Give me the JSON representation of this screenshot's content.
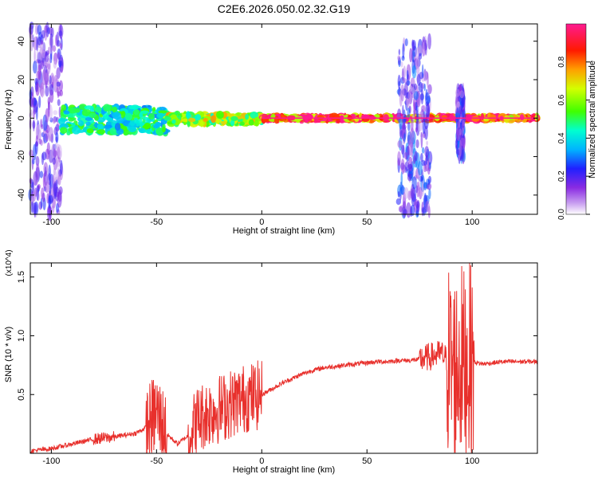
{
  "figure": {
    "title": "C2E6.2026.050.02.32.G19"
  },
  "chart_data": [
    {
      "type": "heatmap",
      "name": "spectrogram",
      "title": "C2E6.2026.050.02.32.G19",
      "xlabel": "Height of straight line (km)",
      "ylabel": "Frequency (Hz)",
      "xlim": [
        -110,
        131
      ],
      "ylim": [
        -50,
        49
      ],
      "xticks": [
        -100,
        -50,
        0,
        50,
        100
      ],
      "yticks": [
        -40,
        -20,
        0,
        20,
        40
      ],
      "colorbar": {
        "label": "Normalized spectral amplitude",
        "range": [
          0,
          1
        ],
        "ticks": [
          0.0,
          0.2,
          0.4,
          0.6,
          0.8
        ],
        "tick_labels": [
          "0.0",
          "0.2",
          "0.4",
          "0.6",
          "0.8"
        ]
      },
      "features": [
        {
          "x_range": [
            -110,
            -95
          ],
          "f_range": [
            -50,
            49
          ],
          "level": 0.25,
          "note": "broadband noise"
        },
        {
          "x_range": [
            -95,
            -45
          ],
          "f_range": [
            -8,
            6
          ],
          "level": 0.5,
          "note": "wide band near 0 Hz"
        },
        {
          "x_range": [
            -45,
            0
          ],
          "f_range": [
            -3,
            2
          ],
          "level": 0.7
        },
        {
          "x_range": [
            0,
            131
          ],
          "f_range": [
            -1,
            1
          ],
          "level": 1.0,
          "note": "narrow peak at 0 Hz"
        },
        {
          "x_range": [
            65,
            80
          ],
          "f_range": [
            -50,
            40
          ],
          "level": 0.3,
          "note": "vertical burst"
        },
        {
          "x_range": [
            93,
            96
          ],
          "f_range": [
            -20,
            15
          ],
          "level": 0.3
        }
      ]
    },
    {
      "type": "line",
      "name": "snr",
      "xlabel": "Height of straight line (km)",
      "ylabel": "SNR (10 * v/v)",
      "y_multiplier": "(x10^4)",
      "xlim": [
        -110,
        131
      ],
      "ylim": [
        0,
        1.62
      ],
      "xticks": [
        -100,
        -50,
        0,
        50,
        100
      ],
      "yticks": [
        0.5,
        1.0,
        1.5
      ],
      "ytick_labels": [
        "0.5",
        "1.0",
        "1.5"
      ],
      "color": "#e8302c",
      "series": [
        {
          "name": "SNR",
          "x": [
            -110,
            -100,
            -90,
            -80,
            -70,
            -60,
            -55,
            -50,
            -45,
            -40,
            -35,
            -30,
            -25,
            -20,
            -15,
            -10,
            -5,
            0,
            5,
            10,
            15,
            20,
            25,
            30,
            35,
            40,
            45,
            50,
            55,
            60,
            65,
            70,
            75,
            80,
            85,
            88,
            90,
            92,
            94,
            96,
            98,
            100,
            105,
            110,
            115,
            120,
            125,
            131
          ],
          "values": [
            0.02,
            0.04,
            0.08,
            0.12,
            0.14,
            0.17,
            0.22,
            0.35,
            0.16,
            0.08,
            0.15,
            0.3,
            0.35,
            0.38,
            0.42,
            0.46,
            0.48,
            0.5,
            0.55,
            0.6,
            0.64,
            0.68,
            0.71,
            0.73,
            0.74,
            0.75,
            0.76,
            0.77,
            0.78,
            0.78,
            0.79,
            0.79,
            0.8,
            0.82,
            0.85,
            0.8,
            0.75,
            0.7,
            0.8,
            0.75,
            0.8,
            0.78,
            0.76,
            0.77,
            0.78,
            0.78,
            0.78,
            0.78
          ]
        }
      ],
      "annotations": [
        {
          "x_range": [
            -80,
            -70
          ],
          "amplitude": 0.05
        },
        {
          "x_range": [
            -55,
            -45
          ],
          "amplitude": 0.35
        },
        {
          "x_range": [
            -35,
            0
          ],
          "amplitude": 0.3
        },
        {
          "x_range": [
            75,
            90
          ],
          "amplitude": 0.12
        },
        {
          "x_range": [
            88,
            101
          ],
          "amplitude": 0.85
        }
      ]
    }
  ]
}
